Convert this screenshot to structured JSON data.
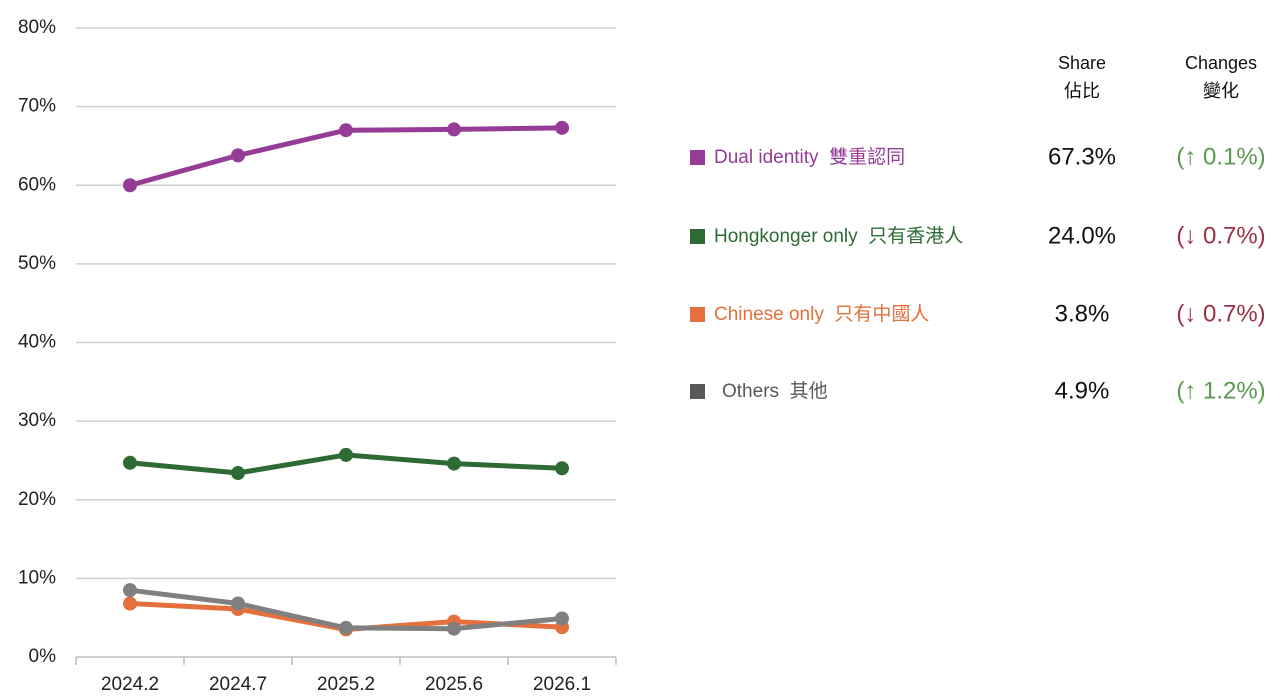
{
  "chart_data": {
    "type": "line",
    "categories": [
      "2024.2",
      "2024.7",
      "2025.2",
      "2025.6",
      "2026.1"
    ],
    "series": [
      {
        "name": "Dual identity  雙重認同",
        "color": "#953d96",
        "values": [
          60.0,
          63.8,
          67.0,
          67.1,
          67.3
        ]
      },
      {
        "name": "Hongkonger only  只有香港人",
        "color": "#2e6b34",
        "values": [
          24.7,
          23.4,
          25.7,
          24.6,
          24.0
        ]
      },
      {
        "name": "Chinese only  只有中國人",
        "color": "#e4703d",
        "values": [
          6.8,
          6.1,
          3.5,
          4.5,
          3.8
        ]
      },
      {
        "name": "Others  其他",
        "color": "#808080",
        "values": [
          8.5,
          6.8,
          3.7,
          3.6,
          4.9
        ]
      }
    ],
    "ylim": [
      0,
      80
    ],
    "yticks": [
      {
        "value": 0,
        "label": "0%"
      },
      {
        "value": 10,
        "label": "10%"
      },
      {
        "value": 20,
        "label": "20%"
      },
      {
        "value": 30,
        "label": "30%"
      },
      {
        "value": 40,
        "label": "40%"
      },
      {
        "value": 50,
        "label": "50%"
      },
      {
        "value": 60,
        "label": "60%"
      },
      {
        "value": 70,
        "label": "70%"
      },
      {
        "value": 80,
        "label": "80%"
      }
    ],
    "grid": true
  },
  "legend_table": {
    "headers": [
      [
        "Share",
        "佔比"
      ],
      [
        "Changes",
        "變化"
      ]
    ],
    "rows": [
      {
        "share": "67.3%",
        "change": "(↑ 0.1%)",
        "change_color": "#5a9a4f"
      },
      {
        "share": "24.0%",
        "change": "(↓ 0.7%)",
        "change_color": "#9b3045"
      },
      {
        "share": "3.8%",
        "change": "(↓ 0.7%)",
        "change_color": "#9b3045"
      },
      {
        "share": "4.9%",
        "change": "(↑ 1.2%)",
        "change_color": "#5a9a4f"
      }
    ]
  }
}
